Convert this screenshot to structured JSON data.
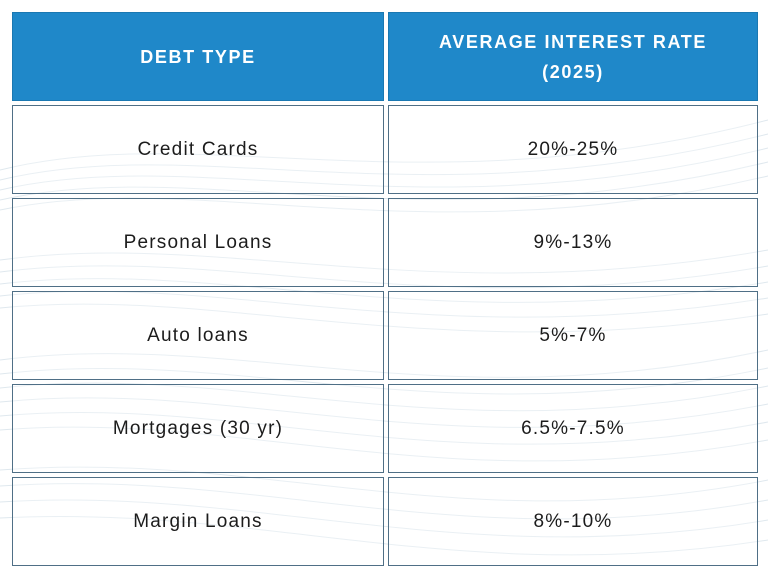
{
  "table": {
    "headers": [
      "DEBT TYPE",
      "AVERAGE INTEREST RATE (2025)"
    ],
    "header_rate_line1": "AVERAGE INTEREST RATE",
    "header_rate_line2": "(2025)",
    "rows": [
      {
        "debt_type": "Credit Cards",
        "rate": "20%-25%"
      },
      {
        "debt_type": "Personal Loans",
        "rate": "9%-13%"
      },
      {
        "debt_type": "Auto loans",
        "rate": "5%-7%"
      },
      {
        "debt_type": "Mortgages (30 yr)",
        "rate": "6.5%-7.5%"
      },
      {
        "debt_type": "Margin Loans",
        "rate": "8%-10%"
      }
    ]
  },
  "colors": {
    "header_background": "#1f88c9",
    "header_text": "#ffffff",
    "cell_border": "#4f6f86",
    "body_text": "#1c1c1c",
    "wave_lines": "#dfe8ee"
  }
}
